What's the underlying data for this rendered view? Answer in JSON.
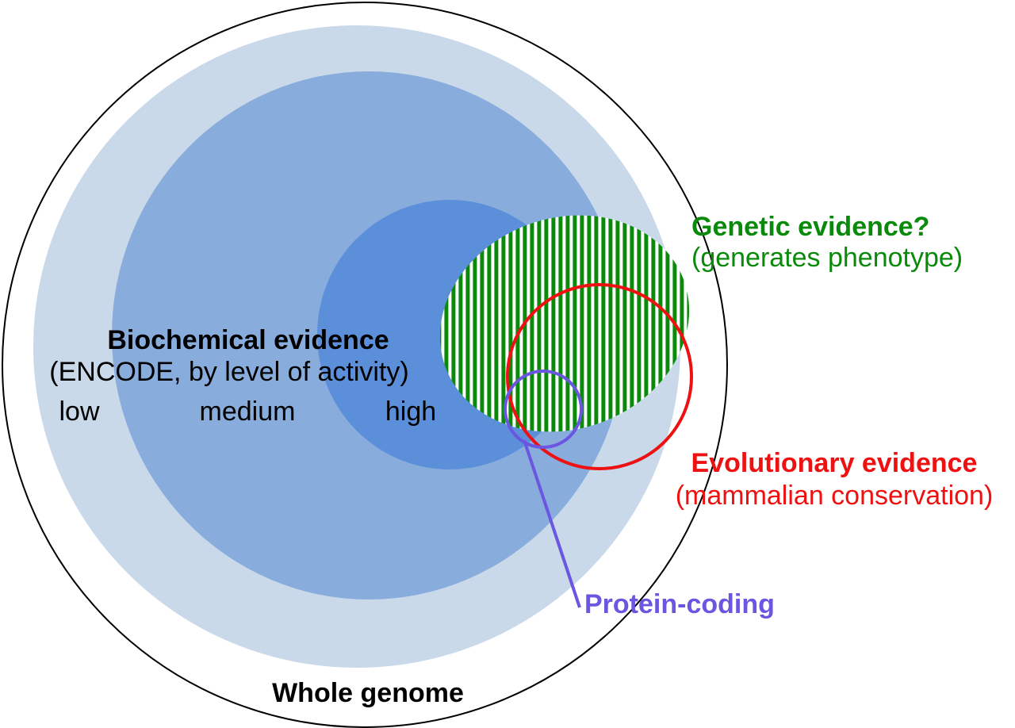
{
  "labels": {
    "biochemical_title": "Biochemical evidence",
    "biochemical_subtitle": "(ENCODE, by level of activity)",
    "level_low": "low",
    "level_medium": "medium",
    "level_high": "high",
    "genetic_title": "Genetic evidence?",
    "genetic_subtitle": "(generates phenotype)",
    "evolutionary_title": "Evolutionary evidence",
    "evolutionary_subtitle": "(mammalian conservation)",
    "protein_coding": "Protein-coding",
    "whole_genome": "Whole genome"
  },
  "colors": {
    "genome_outline": "#000000",
    "activity_low": "#c9d9ea",
    "activity_medium": "#88acdc",
    "activity_high": "#5b8fd9",
    "genetic": "#0a8a0a",
    "evolutionary": "#ee1111",
    "protein_coding": "#6a56e0",
    "text": "#000000"
  }
}
